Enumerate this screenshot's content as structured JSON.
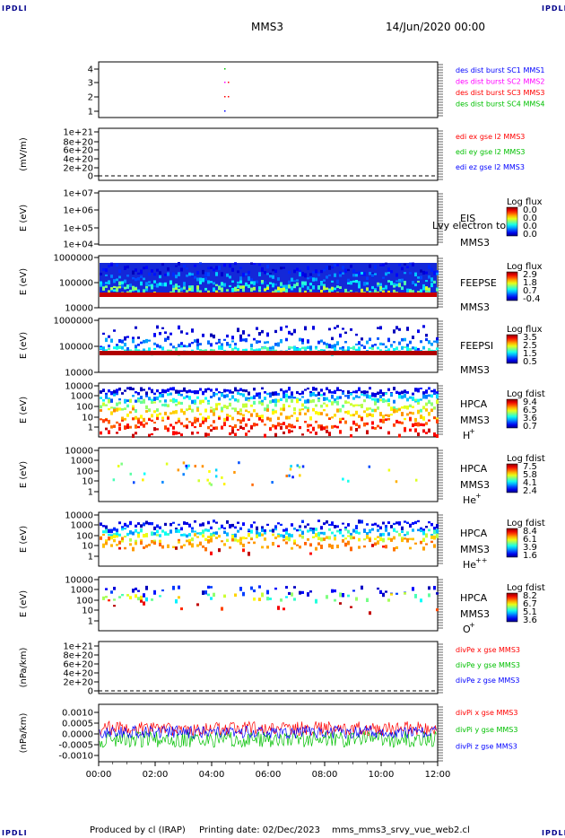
{
  "corners": {
    "tl": "IPDLI",
    "tr": "IPDLI",
    "bl": "IPDLI",
    "br": "IPDLI"
  },
  "header": {
    "spacecraft": "MMS3",
    "date": "14/Jun/2020 00:00"
  },
  "footer": {
    "produced": "Produced by cl (IRAP)",
    "printing": "Printing date: 02/Dec/2023",
    "file": "mms_mms3_srvy_vue_web2.cl"
  },
  "colors": {
    "blue": "#0000ff",
    "magenta": "#ff00ff",
    "red": "#ff0000",
    "green": "#00c000",
    "dark_red": "#a00000"
  },
  "chart_data": [
    {
      "id": "burst",
      "type": "scatter",
      "ylabel": "",
      "yticks": [
        "4",
        "3",
        "2",
        "1"
      ],
      "legend": [
        {
          "text": "des dist burst SC1 MMS1",
          "color": "#0000ff"
        },
        {
          "text": "des dist burst SC2 MMS2",
          "color": "#ff00ff"
        },
        {
          "text": "des dist burst SC3 MMS3",
          "color": "#ff0000"
        },
        {
          "text": "des dist burst SC4 MMS4",
          "color": "#00c000"
        }
      ]
    },
    {
      "id": "edi",
      "type": "line",
      "ylabel": "(mV/m)",
      "yticks": [
        "1e+21",
        "8e+20",
        "6e+20",
        "4e+20",
        "2e+20",
        "0"
      ],
      "legend": [
        {
          "text": "edi ex gse l2 MMS3",
          "color": "#ff0000"
        },
        {
          "text": "edi ey gse l2 MMS3",
          "color": "#00c000"
        },
        {
          "text": "edi ez gse l2 MMS3",
          "color": "#0000ff"
        }
      ]
    },
    {
      "id": "eis",
      "type": "heatmap",
      "ylabel": "E (eV)",
      "yticks": [
        "1e+07",
        "1e+06",
        "1e+05",
        "1e+04"
      ],
      "names": [
        "EIS",
        "MMS3"
      ],
      "overlap_text": "Lvy electron to",
      "cb_title": "Log flux",
      "cb": [
        "0.0",
        "0.0",
        "0.0",
        "0.0"
      ]
    },
    {
      "id": "feepse",
      "type": "heatmap",
      "ylabel": "E (eV)",
      "yticks": [
        "1000000",
        "100000",
        "10000"
      ],
      "names": [
        "FEEPSE",
        "MMS3"
      ],
      "cb_title": "Log flux",
      "cb": [
        "2.9",
        "1.8",
        "0.7",
        "-0.4"
      ]
    },
    {
      "id": "feepsi",
      "type": "heatmap",
      "ylabel": "E (eV)",
      "yticks": [
        "1000000",
        "100000",
        "10000"
      ],
      "names": [
        "FEEPSI",
        "MMS3"
      ],
      "cb_title": "Log flux",
      "cb": [
        "3.5",
        "2.5",
        "1.5",
        "0.5"
      ]
    },
    {
      "id": "hpca_h",
      "type": "heatmap",
      "ylabel": "E (eV)",
      "yticks": [
        "10000",
        "1000",
        "100",
        "10",
        "1"
      ],
      "names": [
        "HPCA",
        "MMS3"
      ],
      "species": "H",
      "sup": "+",
      "cb_title": "Log fdist",
      "cb": [
        "9.4",
        "6.5",
        "3.6",
        "0.7"
      ]
    },
    {
      "id": "hpca_he",
      "type": "heatmap",
      "ylabel": "E (eV)",
      "yticks": [
        "10000",
        "1000",
        "100",
        "10",
        "1"
      ],
      "names": [
        "HPCA",
        "MMS3"
      ],
      "species": "He",
      "sup": "+",
      "cb_title": "Log fdist",
      "cb": [
        "7.5",
        "5.8",
        "4.1",
        "2.4"
      ]
    },
    {
      "id": "hpca_hepp",
      "type": "heatmap",
      "ylabel": "E (eV)",
      "yticks": [
        "10000",
        "1000",
        "100",
        "10",
        "1"
      ],
      "names": [
        "HPCA",
        "MMS3"
      ],
      "species": "He",
      "sup": "++",
      "cb_title": "Log fdist",
      "cb": [
        "8.4",
        "6.1",
        "3.9",
        "1.6"
      ]
    },
    {
      "id": "hpca_o",
      "type": "heatmap",
      "ylabel": "E (eV)",
      "yticks": [
        "10000",
        "1000",
        "100",
        "10",
        "1"
      ],
      "names": [
        "HPCA",
        "MMS3"
      ],
      "species": "O",
      "sup": "+",
      "cb_title": "Log fdist",
      "cb": [
        "8.2",
        "6.7",
        "5.1",
        "3.6"
      ]
    },
    {
      "id": "divpe",
      "type": "line",
      "ylabel": "(nPa/km)",
      "yticks": [
        "1e+21",
        "8e+20",
        "6e+20",
        "4e+20",
        "2e+20",
        "0"
      ],
      "legend": [
        {
          "text": "divPe x gse MMS3",
          "color": "#ff0000"
        },
        {
          "text": "divPe y gse MMS3",
          "color": "#00c000"
        },
        {
          "text": "divPe z gse MMS3",
          "color": "#0000ff"
        }
      ]
    },
    {
      "id": "divpi",
      "type": "line",
      "ylabel": "(nPa/km)",
      "yticks": [
        "0.0010",
        "0.0005",
        "0.0000",
        "-0.0005",
        "-0.0010"
      ],
      "legend": [
        {
          "text": "divPi x gse MMS3",
          "color": "#ff0000"
        },
        {
          "text": "divPi y gse MMS3",
          "color": "#00c000"
        },
        {
          "text": "divPi z gse MMS3",
          "color": "#0000ff"
        }
      ]
    }
  ],
  "xaxis": {
    "ticks": [
      "00:00",
      "02:00",
      "04:00",
      "06:00",
      "08:00",
      "10:00",
      "12:00"
    ]
  }
}
